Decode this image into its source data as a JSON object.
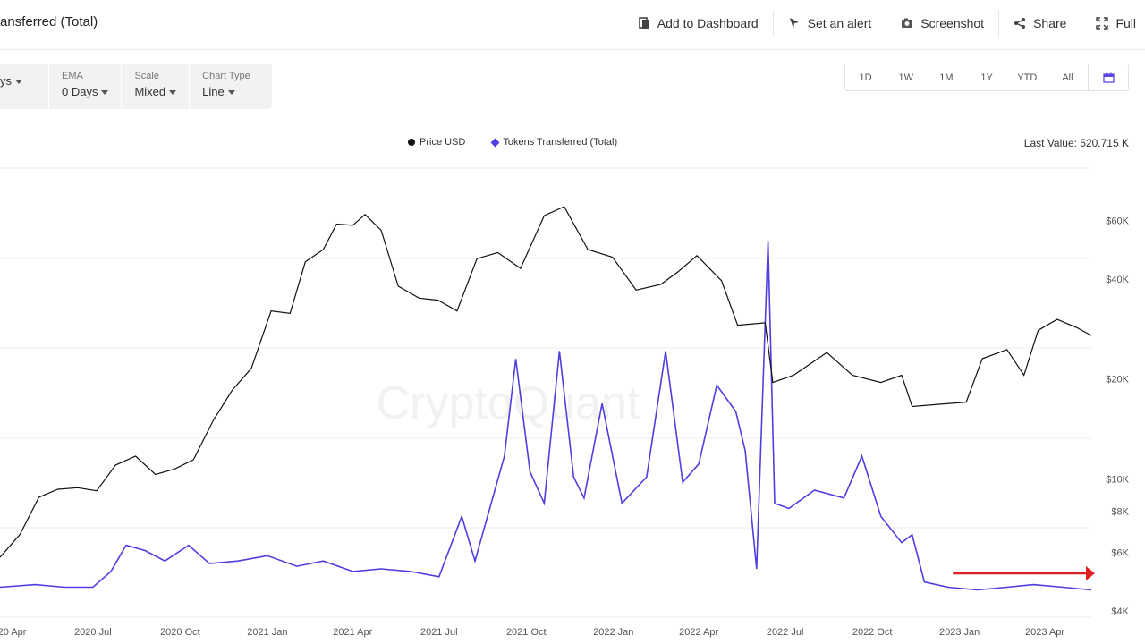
{
  "page": {
    "title": "ansferred (Total)"
  },
  "toolbar": {
    "items": [
      {
        "label": "Add to Dashboard",
        "icon": "dashboard-icon"
      },
      {
        "label": "Set an alert",
        "icon": "alert-icon"
      },
      {
        "label": "Screenshot",
        "icon": "camera-icon"
      },
      {
        "label": "Share",
        "icon": "share-icon"
      },
      {
        "label": "Full",
        "icon": "fullscreen-icon"
      }
    ]
  },
  "controls": [
    {
      "label": "",
      "value": "ys"
    },
    {
      "label": "EMA",
      "value": "0 Days"
    },
    {
      "label": "Scale",
      "value": "Mixed"
    },
    {
      "label": "Chart Type",
      "value": "Line"
    }
  ],
  "ranges": [
    "1D",
    "1W",
    "1M",
    "1Y",
    "YTD",
    "All"
  ],
  "last_value": "Last Value: 520.715 K",
  "watermark": "CryptoQuant",
  "colors": {
    "price": "#111111",
    "tokens": "#4f3ee0",
    "annotation": "#e02020",
    "grid": "#ececec"
  },
  "chart_data": {
    "type": "line",
    "legend": "top-center",
    "x_tick_labels": [
      "2020 Apr",
      "2020 Jul",
      "2020 Oct",
      "2021 Jan",
      "2021 Apr",
      "2021 Jul",
      "2021 Oct",
      "2022 Jan",
      "2022 Apr",
      "2022 Jul",
      "2022 Oct",
      "2023 Jan",
      "2023 Apr"
    ],
    "y_right_scale": "log",
    "y_right_ticks": [
      "$60K",
      "$40K",
      "$20K",
      "$10K",
      "$8K",
      "$6K",
      "$4K"
    ],
    "y_right_tick_values": [
      60000,
      40000,
      20000,
      10000,
      8000,
      6000,
      4000
    ],
    "series": [
      {
        "name": "Price USD",
        "axis": "right",
        "x": [
          "2020-03-25",
          "2020-04-15",
          "2020-05-05",
          "2020-05-25",
          "2020-06-15",
          "2020-07-05",
          "2020-07-25",
          "2020-08-15",
          "2020-09-05",
          "2020-09-25",
          "2020-10-15",
          "2020-11-05",
          "2020-11-25",
          "2020-12-15",
          "2021-01-05",
          "2021-01-25",
          "2021-02-10",
          "2021-03-01",
          "2021-03-15",
          "2021-04-01",
          "2021-04-14",
          "2021-05-01",
          "2021-05-19",
          "2021-06-10",
          "2021-06-30",
          "2021-07-20",
          "2021-08-10",
          "2021-09-01",
          "2021-09-25",
          "2021-10-20",
          "2021-11-10",
          "2021-12-05",
          "2021-12-31",
          "2022-01-25",
          "2022-02-20",
          "2022-03-10",
          "2022-03-30",
          "2022-04-25",
          "2022-05-12",
          "2022-06-10",
          "2022-06-18",
          "2022-07-10",
          "2022-08-14",
          "2022-09-10",
          "2022-10-10",
          "2022-11-01",
          "2022-11-12",
          "2022-12-15",
          "2023-01-08",
          "2023-01-25",
          "2023-02-20",
          "2023-03-10",
          "2023-03-25",
          "2023-04-14",
          "2023-05-05",
          "2023-05-20"
        ],
        "values": [
          5800,
          6800,
          8800,
          9300,
          9400,
          9200,
          11000,
          11700,
          10300,
          10700,
          11400,
          15000,
          18500,
          21500,
          32000,
          31500,
          45000,
          49000,
          58500,
          58000,
          62500,
          56000,
          38000,
          35000,
          34500,
          32000,
          46000,
          48000,
          43000,
          62000,
          66000,
          49000,
          46500,
          37000,
          38500,
          42000,
          47000,
          39500,
          29000,
          29500,
          19500,
          20500,
          24000,
          20500,
          19500,
          20500,
          16500,
          16800,
          17000,
          23000,
          24500,
          20500,
          28000,
          30200,
          28500,
          27000
        ]
      },
      {
        "name": "Tokens Transferred (Total)",
        "axis": "left",
        "x": [
          "2020-03-25",
          "2020-05-01",
          "2020-06-01",
          "2020-07-01",
          "2020-07-20",
          "2020-08-05",
          "2020-08-25",
          "2020-09-15",
          "2020-10-10",
          "2020-11-01",
          "2020-12-01",
          "2021-01-01",
          "2021-02-01",
          "2021-03-01",
          "2021-04-01",
          "2021-05-01",
          "2021-06-01",
          "2021-07-01",
          "2021-07-25",
          "2021-08-08",
          "2021-08-25",
          "2021-09-08",
          "2021-09-20",
          "2021-10-05",
          "2021-10-20",
          "2021-11-05",
          "2021-11-20",
          "2021-12-01",
          "2021-12-20",
          "2022-01-10",
          "2022-02-05",
          "2022-02-25",
          "2022-03-15",
          "2022-04-01",
          "2022-04-20",
          "2022-05-10",
          "2022-05-20",
          "2022-06-01",
          "2022-06-13",
          "2022-06-20",
          "2022-07-05",
          "2022-08-01",
          "2022-09-01",
          "2022-09-20",
          "2022-10-10",
          "2022-11-01",
          "2022-11-12",
          "2022-11-25",
          "2022-12-20",
          "2023-01-20",
          "2023-02-20",
          "2023-03-20",
          "2023-04-20",
          "2023-05-20"
        ],
        "values": [
          8,
          9,
          8,
          8,
          14,
          24,
          22,
          18,
          24,
          17,
          18,
          20,
          16,
          18,
          14,
          15,
          14,
          12,
          35,
          18,
          40,
          58,
          95,
          52,
          40,
          98,
          50,
          42,
          78,
          40,
          50,
          98,
          48,
          55,
          85,
          75,
          60,
          15,
          140,
          40,
          38,
          45,
          42,
          58,
          35,
          25,
          28,
          10,
          8,
          7,
          8,
          9,
          8,
          7
        ]
      }
    ],
    "annotations": [
      {
        "type": "arrow",
        "color": "red",
        "direction": "right",
        "from_x": "2022-12-25",
        "to_x": "2023-05-20"
      }
    ]
  }
}
